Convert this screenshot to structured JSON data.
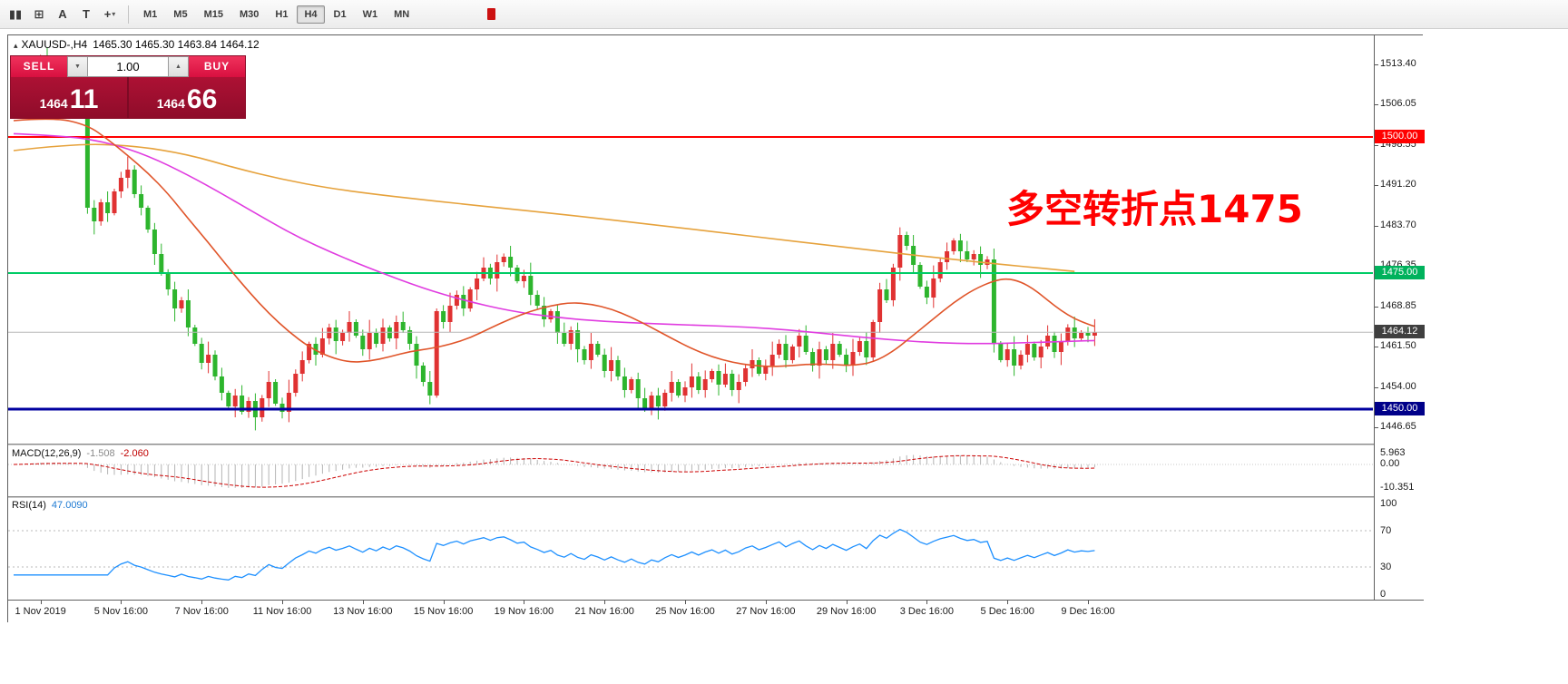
{
  "toolbar": {
    "tools": [
      {
        "name": "chart-objects-icon",
        "glyph": "▮▮"
      },
      {
        "name": "grid-icon",
        "glyph": "⊞"
      },
      {
        "name": "text-tool-icon",
        "glyph": "A"
      },
      {
        "name": "text-label-icon",
        "glyph": "T"
      },
      {
        "name": "crosshair-tool-icon",
        "glyph": "+",
        "dropdown": "▾"
      }
    ],
    "timeframes": [
      {
        "label": "M1",
        "active": false
      },
      {
        "label": "M5",
        "active": false
      },
      {
        "label": "M15",
        "active": false
      },
      {
        "label": "M30",
        "active": false
      },
      {
        "label": "H1",
        "active": false
      },
      {
        "label": "H4",
        "active": true
      },
      {
        "label": "D1",
        "active": false
      },
      {
        "label": "W1",
        "active": false
      },
      {
        "label": "MN",
        "active": false
      }
    ]
  },
  "chart_header": {
    "symbol": "XAUUSD-,H4",
    "ohlc": "1465.30 1465.30 1463.84 1464.12"
  },
  "icons": {
    "collapse": "▴",
    "step_up": "▲",
    "step_down": "▼"
  },
  "trade_panel": {
    "sell_label": "SELL",
    "buy_label": "BUY",
    "volume": "1.00",
    "sell_price_main": "1464",
    "sell_price_big": "11",
    "buy_price_main": "1464",
    "buy_price_big": "66"
  },
  "annotation": {
    "text": "多空转折点1475",
    "color": "#ff0000"
  },
  "price_axis": {
    "labels": [
      "1513.40",
      "1506.05",
      "1498.55",
      "1491.20",
      "1483.70",
      "1476.35",
      "1468.85",
      "1461.50",
      "1454.00",
      "1446.65"
    ],
    "badges": [
      {
        "text": "1500.00",
        "price": 1500.0,
        "color": "#ff0000"
      },
      {
        "text": "1475.00",
        "price": 1475.0,
        "color": "#00b25c"
      },
      {
        "text": "1464.12",
        "price": 1464.12,
        "color": "#3f3f3f"
      },
      {
        "text": "1450.00",
        "price": 1450.0,
        "color": "#000089"
      }
    ]
  },
  "hlines": [
    {
      "price": 1500.0,
      "color": "#ff0000",
      "width": 2
    },
    {
      "price": 1475.0,
      "color": "#00cc66",
      "width": 2
    },
    {
      "price": 1464.12,
      "color": "#b8b8b8",
      "width": 1
    },
    {
      "price": 1450.0,
      "color": "#0000a0",
      "width": 3
    }
  ],
  "time_axis": {
    "labels": [
      {
        "text": "1 Nov 2019",
        "i": 4
      },
      {
        "text": "5 Nov 16:00",
        "i": 16
      },
      {
        "text": "7 Nov 16:00",
        "i": 28
      },
      {
        "text": "11 Nov 16:00",
        "i": 40
      },
      {
        "text": "13 Nov 16:00",
        "i": 52
      },
      {
        "text": "15 Nov 16:00",
        "i": 64
      },
      {
        "text": "19 Nov 16:00",
        "i": 76
      },
      {
        "text": "21 Nov 16:00",
        "i": 88
      },
      {
        "text": "25 Nov 16:00",
        "i": 100
      },
      {
        "text": "27 Nov 16:00",
        "i": 112
      },
      {
        "text": "29 Nov 16:00",
        "i": 124
      },
      {
        "text": "3 Dec 16:00",
        "i": 136
      },
      {
        "text": "5 Dec 16:00",
        "i": 148
      },
      {
        "text": "9 Dec 16:00",
        "i": 160
      }
    ]
  },
  "indicators": {
    "macd": {
      "label": "MACD(12,26,9)",
      "value1": "-1.508",
      "value2": "-2.060",
      "axis": [
        "5.963",
        "0.00",
        "-10.351"
      ],
      "histogram_color": "#b4b4b4",
      "signal_color": "#cc0000"
    },
    "rsi": {
      "label": "RSI(14)",
      "value": "47.0090",
      "axis": [
        "100",
        "70",
        "30",
        "0"
      ],
      "levels": [
        70,
        30
      ],
      "line_color": "#1e90ff"
    }
  },
  "chart_data": {
    "type": "candlestick",
    "symbol": "XAUUSD-",
    "timeframe": "H4",
    "current_price": 1464.12,
    "up_color": "#e03232",
    "down_color": "#2db52d",
    "first_open": 1508.0,
    "closes": [
      1509,
      1511,
      1512.5,
      1513.5,
      1514,
      1513,
      1511.5,
      1510.5,
      1509,
      1508,
      1507,
      1487,
      1484.5,
      1488,
      1486,
      1490,
      1492.5,
      1494,
      1489.5,
      1487,
      1483,
      1478.5,
      1475,
      1472,
      1468.5,
      1470,
      1465,
      1462,
      1458.5,
      1460,
      1456,
      1453,
      1450.5,
      1452.5,
      1449.5,
      1451.5,
      1448.5,
      1452,
      1455,
      1451,
      1449.5,
      1453,
      1456.5,
      1459,
      1462,
      1460,
      1463,
      1465,
      1462.5,
      1464,
      1466,
      1463.5,
      1461,
      1464,
      1462,
      1465,
      1463,
      1466,
      1464.5,
      1462,
      1458,
      1455,
      1452.5,
      1468,
      1466,
      1469,
      1471,
      1468.5,
      1472,
      1474,
      1476,
      1474,
      1477,
      1478,
      1476,
      1473.5,
      1474.5,
      1471,
      1469,
      1466.5,
      1468,
      1464,
      1462,
      1464.5,
      1461,
      1459,
      1462,
      1460,
      1457,
      1459,
      1456,
      1453.5,
      1455.5,
      1452,
      1450,
      1452.5,
      1450.5,
      1453,
      1455,
      1452.5,
      1454,
      1456,
      1453.5,
      1455.5,
      1457,
      1454.5,
      1456.5,
      1453.5,
      1455,
      1457.5,
      1459,
      1456.5,
      1458,
      1460,
      1462,
      1459,
      1461.5,
      1463.5,
      1460.5,
      1458,
      1461,
      1459,
      1462,
      1460,
      1458,
      1460.5,
      1462.5,
      1459.5,
      1466,
      1472,
      1470,
      1476,
      1482,
      1480,
      1476.5,
      1472.5,
      1470.5,
      1474,
      1477,
      1479,
      1481,
      1479,
      1477.5,
      1478.5,
      1476.5,
      1477.5,
      1462,
      1459,
      1461,
      1458,
      1460,
      1462,
      1459.5,
      1461.5,
      1463.5,
      1460.5,
      1462.5,
      1465,
      1463,
      1464,
      1463.5,
      1464.12
    ],
    "wick_pattern": [
      1.4,
      0.6,
      2.0,
      0.5,
      1.1,
      2.4,
      0.8,
      1.6,
      0.4,
      1.2,
      1.9,
      0.7
    ],
    "moving_averages": [
      {
        "name": "slow",
        "color": "#e6a23c",
        "points": [
          [
            0,
            1497.5
          ],
          [
            9,
            1498.8
          ],
          [
            18,
            1498.4
          ],
          [
            26,
            1496.8
          ],
          [
            33,
            1494.3
          ],
          [
            40,
            1492.2
          ],
          [
            47,
            1490.6
          ],
          [
            53,
            1489.6
          ],
          [
            60,
            1488.6
          ],
          [
            66,
            1487.8
          ],
          [
            73,
            1486.9
          ],
          [
            80,
            1486
          ],
          [
            86,
            1485.2
          ],
          [
            93,
            1484.2
          ],
          [
            100,
            1483.2
          ],
          [
            107,
            1482.2
          ],
          [
            113,
            1481.3
          ],
          [
            120,
            1480.3
          ],
          [
            127,
            1479.3
          ],
          [
            134,
            1478.3
          ],
          [
            140,
            1477.5
          ],
          [
            147,
            1476.6
          ],
          [
            153,
            1475.9
          ],
          [
            158,
            1475.3
          ]
        ]
      },
      {
        "name": "medium",
        "color": "#e03ce0",
        "points": [
          [
            0,
            1500.6
          ],
          [
            8,
            1500.2
          ],
          [
            14,
            1499
          ],
          [
            20,
            1496.6
          ],
          [
            26,
            1493
          ],
          [
            31,
            1489.6
          ],
          [
            36,
            1486
          ],
          [
            42,
            1481.8
          ],
          [
            48,
            1478.4
          ],
          [
            54,
            1475.4
          ],
          [
            61,
            1472.2
          ],
          [
            67,
            1470
          ],
          [
            74,
            1468
          ],
          [
            81,
            1466.8
          ],
          [
            88,
            1466.1
          ],
          [
            95,
            1465.7
          ],
          [
            102,
            1465.4
          ],
          [
            109,
            1465.1
          ],
          [
            116,
            1464.5
          ],
          [
            123,
            1463.6
          ],
          [
            130,
            1462.8
          ],
          [
            137,
            1462.2
          ],
          [
            144,
            1462
          ],
          [
            151,
            1462.2
          ],
          [
            158,
            1462.5
          ],
          [
            161,
            1462.6
          ]
        ]
      },
      {
        "name": "fast",
        "color": "#e0552a",
        "points": [
          [
            0,
            1503
          ],
          [
            6,
            1503.6
          ],
          [
            11,
            1502.2
          ],
          [
            14,
            1499.6
          ],
          [
            17,
            1496.6
          ],
          [
            20,
            1493.4
          ],
          [
            23,
            1489.6
          ],
          [
            26,
            1485
          ],
          [
            29,
            1480.6
          ],
          [
            32,
            1476
          ],
          [
            35,
            1471.6
          ],
          [
            38,
            1467.6
          ],
          [
            41,
            1464.2
          ],
          [
            44,
            1461.4
          ],
          [
            47,
            1459.6
          ],
          [
            50,
            1458.6
          ],
          [
            53,
            1458.8
          ],
          [
            56,
            1459.6
          ],
          [
            59,
            1460.6
          ],
          [
            62,
            1461.1
          ],
          [
            65,
            1461.9
          ],
          [
            68,
            1463.1
          ],
          [
            71,
            1464.9
          ],
          [
            74,
            1466.6
          ],
          [
            77,
            1468
          ],
          [
            80,
            1469
          ],
          [
            83,
            1469.6
          ],
          [
            86,
            1469.3
          ],
          [
            89,
            1468.4
          ],
          [
            92,
            1466.9
          ],
          [
            95,
            1465
          ],
          [
            98,
            1463
          ],
          [
            101,
            1461.1
          ],
          [
            104,
            1459.6
          ],
          [
            107,
            1458.6
          ],
          [
            110,
            1458
          ],
          [
            113,
            1457.8
          ],
          [
            116,
            1458
          ],
          [
            119,
            1458.3
          ],
          [
            122,
            1458.2
          ],
          [
            125,
            1458
          ],
          [
            128,
            1458.6
          ],
          [
            131,
            1460.6
          ],
          [
            134,
            1463.6
          ],
          [
            137,
            1466.6
          ],
          [
            140,
            1469.6
          ],
          [
            143,
            1472
          ],
          [
            146,
            1473.6
          ],
          [
            148,
            1474
          ],
          [
            150,
            1473.4
          ],
          [
            152,
            1472
          ],
          [
            154,
            1470
          ],
          [
            156,
            1468.1
          ],
          [
            158,
            1466.6
          ],
          [
            160,
            1465.6
          ],
          [
            161,
            1465.2
          ]
        ]
      }
    ]
  }
}
